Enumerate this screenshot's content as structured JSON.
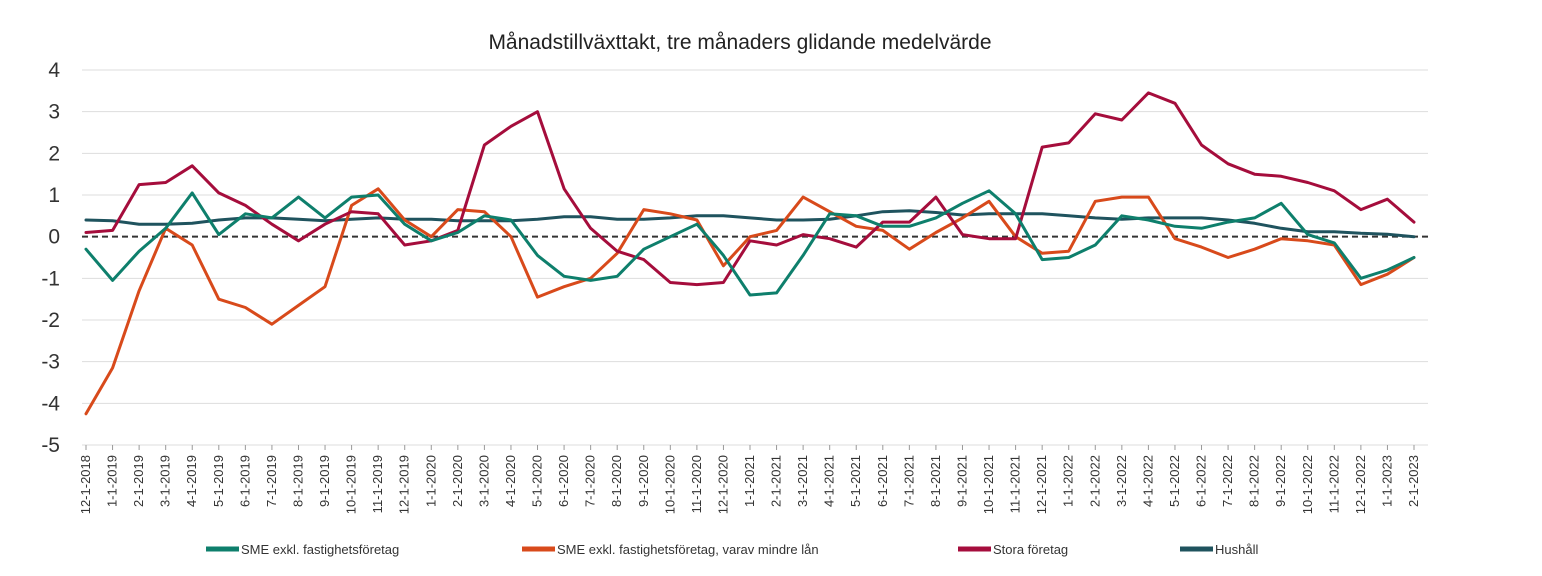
{
  "chart_data": {
    "type": "line",
    "title": "Månadstillväxttakt, tre månaders glidande medelvärde",
    "xlabel": "",
    "ylabel": "",
    "ylim": [
      -5,
      4
    ],
    "yticks": [
      4,
      3,
      2,
      1,
      0,
      -1,
      -2,
      -3,
      -4,
      -5
    ],
    "grid": "horizontal",
    "zero_line": "dashed",
    "legend_position": "bottom",
    "x": [
      "12-1-2018",
      "1-1-2019",
      "2-1-2019",
      "3-1-2019",
      "4-1-2019",
      "5-1-2019",
      "6-1-2019",
      "7-1-2019",
      "8-1-2019",
      "9-1-2019",
      "10-1-2019",
      "11-1-2019",
      "12-1-2019",
      "1-1-2020",
      "2-1-2020",
      "3-1-2020",
      "4-1-2020",
      "5-1-2020",
      "6-1-2020",
      "7-1-2020",
      "8-1-2020",
      "9-1-2020",
      "10-1-2020",
      "11-1-2020",
      "12-1-2020",
      "1-1-2021",
      "2-1-2021",
      "3-1-2021",
      "4-1-2021",
      "5-1-2021",
      "6-1-2021",
      "7-1-2021",
      "8-1-2021",
      "9-1-2021",
      "10-1-2021",
      "11-1-2021",
      "12-1-2021",
      "1-1-2022",
      "2-1-2022",
      "3-1-2022",
      "4-1-2022",
      "5-1-2022",
      "6-1-2022",
      "7-1-2022",
      "8-1-2022",
      "9-1-2022",
      "10-1-2022",
      "11-1-2022",
      "12-1-2022",
      "1-1-2023",
      "2-1-2023"
    ],
    "series": [
      {
        "name": "SME exkl. fastighetsföretag",
        "color": "#0e7f6c",
        "values": [
          -0.3,
          -1.05,
          -0.35,
          0.2,
          1.05,
          0.05,
          0.55,
          0.45,
          0.95,
          0.45,
          0.95,
          1.0,
          0.3,
          -0.1,
          0.1,
          0.5,
          0.4,
          -0.45,
          -0.95,
          -1.05,
          -0.95,
          -0.3,
          0.0,
          0.3,
          -0.45,
          -1.4,
          -1.35,
          -0.45,
          0.55,
          0.5,
          0.25,
          0.25,
          0.45,
          0.8,
          1.1,
          0.55,
          -0.55,
          -0.5,
          -0.2,
          0.5,
          0.4,
          0.25,
          0.2,
          0.35,
          0.45,
          0.8,
          0.05,
          -0.15,
          -1.0,
          -0.8,
          -0.5
        ]
      },
      {
        "name": "SME exkl. fastighetsföretag, varav mindre lån",
        "color": "#d84a1b",
        "values": [
          -4.25,
          -3.15,
          -1.3,
          0.2,
          -0.2,
          -1.5,
          -1.7,
          -2.1,
          -1.65,
          -1.2,
          0.75,
          1.15,
          0.4,
          0.0,
          0.65,
          0.6,
          0.0,
          -1.45,
          -1.2,
          -1.0,
          -0.4,
          0.65,
          0.55,
          0.4,
          -0.7,
          0.0,
          0.15,
          0.95,
          0.6,
          0.25,
          0.15,
          -0.3,
          0.1,
          0.45,
          0.85,
          0.0,
          -0.4,
          -0.35,
          0.85,
          0.95,
          0.95,
          -0.05,
          -0.25,
          -0.5,
          -0.3,
          -0.05,
          -0.1,
          -0.2,
          -1.15,
          -0.9,
          -0.5
        ]
      },
      {
        "name": "Stora företag",
        "color": "#a50d3c",
        "values": [
          0.1,
          0.15,
          1.25,
          1.3,
          1.7,
          1.05,
          0.75,
          0.3,
          -0.1,
          0.3,
          0.6,
          0.55,
          -0.2,
          -0.1,
          0.15,
          2.2,
          2.65,
          3.0,
          1.15,
          0.2,
          -0.35,
          -0.55,
          -1.1,
          -1.15,
          -1.1,
          -0.1,
          -0.2,
          0.05,
          -0.05,
          -0.25,
          0.35,
          0.35,
          0.95,
          0.05,
          -0.05,
          -0.05,
          2.15,
          2.25,
          2.95,
          2.8,
          3.45,
          3.2,
          2.2,
          1.75,
          1.5,
          1.45,
          1.3,
          1.1,
          0.65,
          0.9,
          0.35
        ]
      },
      {
        "name": "Hushåll",
        "color": "#1f535e",
        "values": [
          0.4,
          0.38,
          0.3,
          0.3,
          0.32,
          0.4,
          0.45,
          0.45,
          0.42,
          0.38,
          0.42,
          0.45,
          0.42,
          0.42,
          0.38,
          0.38,
          0.38,
          0.42,
          0.48,
          0.48,
          0.42,
          0.42,
          0.45,
          0.5,
          0.5,
          0.45,
          0.4,
          0.4,
          0.42,
          0.5,
          0.6,
          0.62,
          0.58,
          0.52,
          0.55,
          0.55,
          0.55,
          0.5,
          0.45,
          0.42,
          0.45,
          0.45,
          0.45,
          0.4,
          0.32,
          0.2,
          0.12,
          0.12,
          0.08,
          0.06,
          0.0
        ]
      }
    ]
  }
}
